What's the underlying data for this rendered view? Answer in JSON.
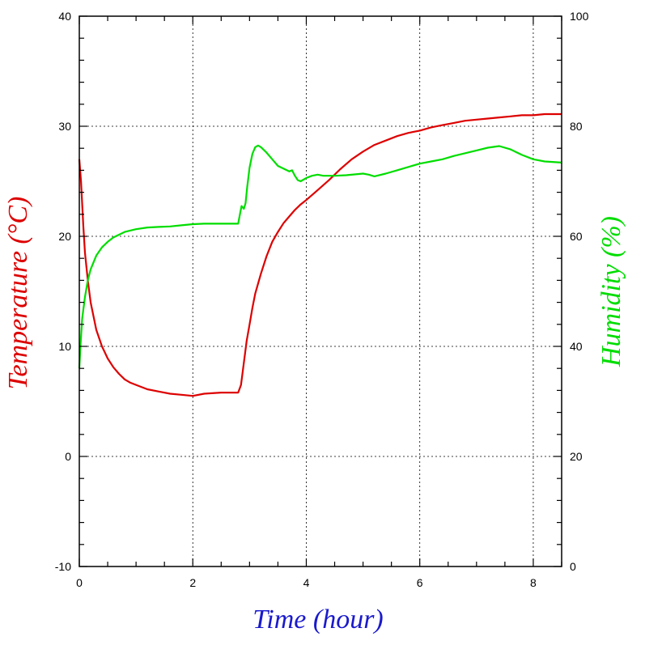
{
  "chart_data": {
    "type": "line",
    "xlabel": "Time (hour)",
    "ylabel_left": "Temperature (°C)",
    "ylabel_right": "Humidity (%)",
    "xlim": [
      0,
      8.5
    ],
    "ylim_left": [
      -10,
      40
    ],
    "ylim_right": [
      0,
      100
    ],
    "x_ticks": [
      0,
      2,
      4,
      6,
      8
    ],
    "y_left_ticks": [
      -10,
      0,
      10,
      20,
      30,
      40
    ],
    "y_right_ticks": [
      0,
      20,
      40,
      60,
      80,
      100
    ],
    "grid": true,
    "colors": {
      "temperature": "#dd0000",
      "humidity": "#00dd00",
      "xlabel": "#1a1acc",
      "grid": "#000000"
    },
    "series": [
      {
        "axis": "left",
        "color": "#dd0000",
        "x": [
          0,
          0.03,
          0.07,
          0.1,
          0.15,
          0.2,
          0.3,
          0.4,
          0.5,
          0.6,
          0.7,
          0.8,
          0.9,
          1.0,
          1.2,
          1.4,
          1.6,
          1.8,
          2.0,
          2.2,
          2.5,
          2.8,
          2.85,
          2.9,
          2.95,
          3.0,
          3.05,
          3.1,
          3.2,
          3.3,
          3.4,
          3.5,
          3.6,
          3.7,
          3.8,
          3.9,
          4.0,
          4.2,
          4.4,
          4.6,
          4.8,
          5.0,
          5.2,
          5.4,
          5.6,
          5.8,
          6.0,
          6.2,
          6.4,
          6.6,
          6.8,
          7.0,
          7.2,
          7.4,
          7.6,
          7.8,
          8.0,
          8.2,
          8.5
        ],
        "y": [
          27.0,
          25.0,
          21.0,
          18.5,
          16.0,
          14.0,
          11.5,
          10.0,
          8.9,
          8.1,
          7.5,
          7.0,
          6.7,
          6.5,
          6.1,
          5.9,
          5.7,
          5.6,
          5.5,
          5.7,
          5.8,
          5.8,
          6.5,
          8.5,
          10.5,
          12.0,
          13.5,
          14.8,
          16.6,
          18.2,
          19.5,
          20.4,
          21.2,
          21.8,
          22.4,
          22.9,
          23.3,
          24.2,
          25.1,
          26.1,
          27.0,
          27.7,
          28.3,
          28.7,
          29.1,
          29.4,
          29.6,
          29.9,
          30.1,
          30.3,
          30.5,
          30.6,
          30.7,
          30.8,
          30.9,
          31.0,
          31.0,
          31.1,
          31.1
        ]
      },
      {
        "axis": "right",
        "color": "#00dd00",
        "x": [
          0,
          0.02,
          0.05,
          0.1,
          0.15,
          0.2,
          0.3,
          0.4,
          0.5,
          0.6,
          0.8,
          1.0,
          1.2,
          1.4,
          1.6,
          1.8,
          2.0,
          2.2,
          2.5,
          2.8,
          2.84,
          2.86,
          2.9,
          2.93,
          2.96,
          3.0,
          3.05,
          3.1,
          3.15,
          3.2,
          3.3,
          3.4,
          3.5,
          3.6,
          3.7,
          3.75,
          3.8,
          3.85,
          3.9,
          3.95,
          4.0,
          4.1,
          4.2,
          4.3,
          4.5,
          4.7,
          5.0,
          5.1,
          5.2,
          5.4,
          5.6,
          5.8,
          6.0,
          6.2,
          6.4,
          6.6,
          6.8,
          7.0,
          7.2,
          7.4,
          7.6,
          7.8,
          8.0,
          8.2,
          8.5
        ],
        "y": [
          36,
          40,
          45,
          49,
          52,
          54,
          56.5,
          58,
          59,
          59.8,
          60.8,
          61.3,
          61.6,
          61.7,
          61.8,
          62.0,
          62.2,
          62.3,
          62.3,
          62.3,
          64.5,
          65.5,
          65.0,
          66.0,
          69.0,
          72.5,
          75.0,
          76.2,
          76.5,
          76.2,
          75.2,
          74.0,
          72.8,
          72.3,
          71.8,
          72.0,
          71.0,
          70.2,
          70.0,
          70.3,
          70.6,
          71.0,
          71.2,
          71.0,
          71.0,
          71.1,
          71.4,
          71.2,
          70.9,
          71.4,
          72.0,
          72.6,
          73.2,
          73.6,
          74.0,
          74.6,
          75.1,
          75.6,
          76.1,
          76.4,
          75.8,
          74.8,
          74.0,
          73.6,
          73.4
        ]
      }
    ]
  }
}
